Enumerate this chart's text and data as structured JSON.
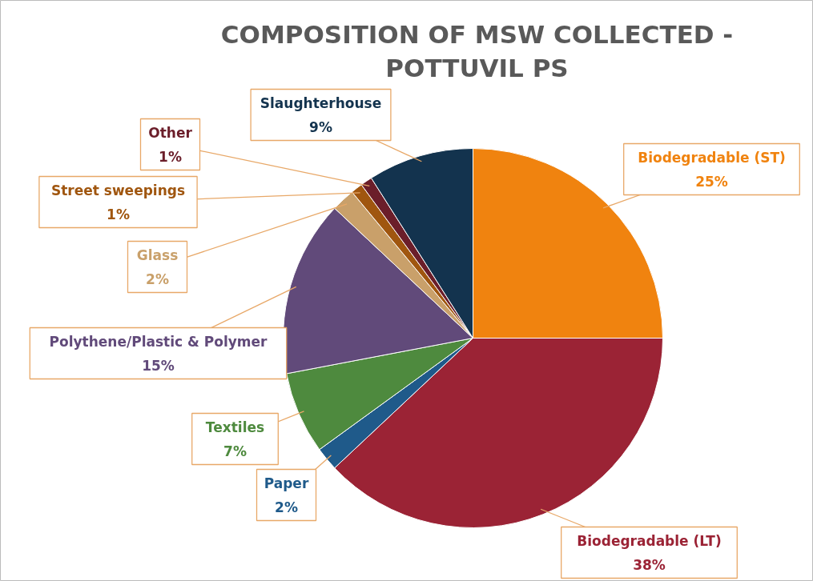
{
  "chart_data": {
    "type": "pie",
    "title": "COMPOSITION OF MSW COLLECTED -\nPOTTUVIL PS",
    "categories": [
      "Biodegradable (ST)",
      "Biodegradable (LT)",
      "Paper",
      "Textiles",
      "Polythene/Plastic & Polymer",
      "Glass",
      "Street sweepings",
      "Other",
      "Slaughterhouse"
    ],
    "values": [
      25,
      38,
      2,
      7,
      15,
      2,
      1,
      1,
      9
    ],
    "colors": [
      "#f0830f",
      "#9b2335",
      "#1f5a8a",
      "#4e8a3e",
      "#614a7a",
      "#c9a06a",
      "#a0560f",
      "#6b1e2a",
      "#13334e"
    ],
    "value_labels": [
      "25%",
      "38%",
      "2%",
      "7%",
      "15%",
      "2%",
      "1%",
      "1%",
      "9%"
    ]
  }
}
